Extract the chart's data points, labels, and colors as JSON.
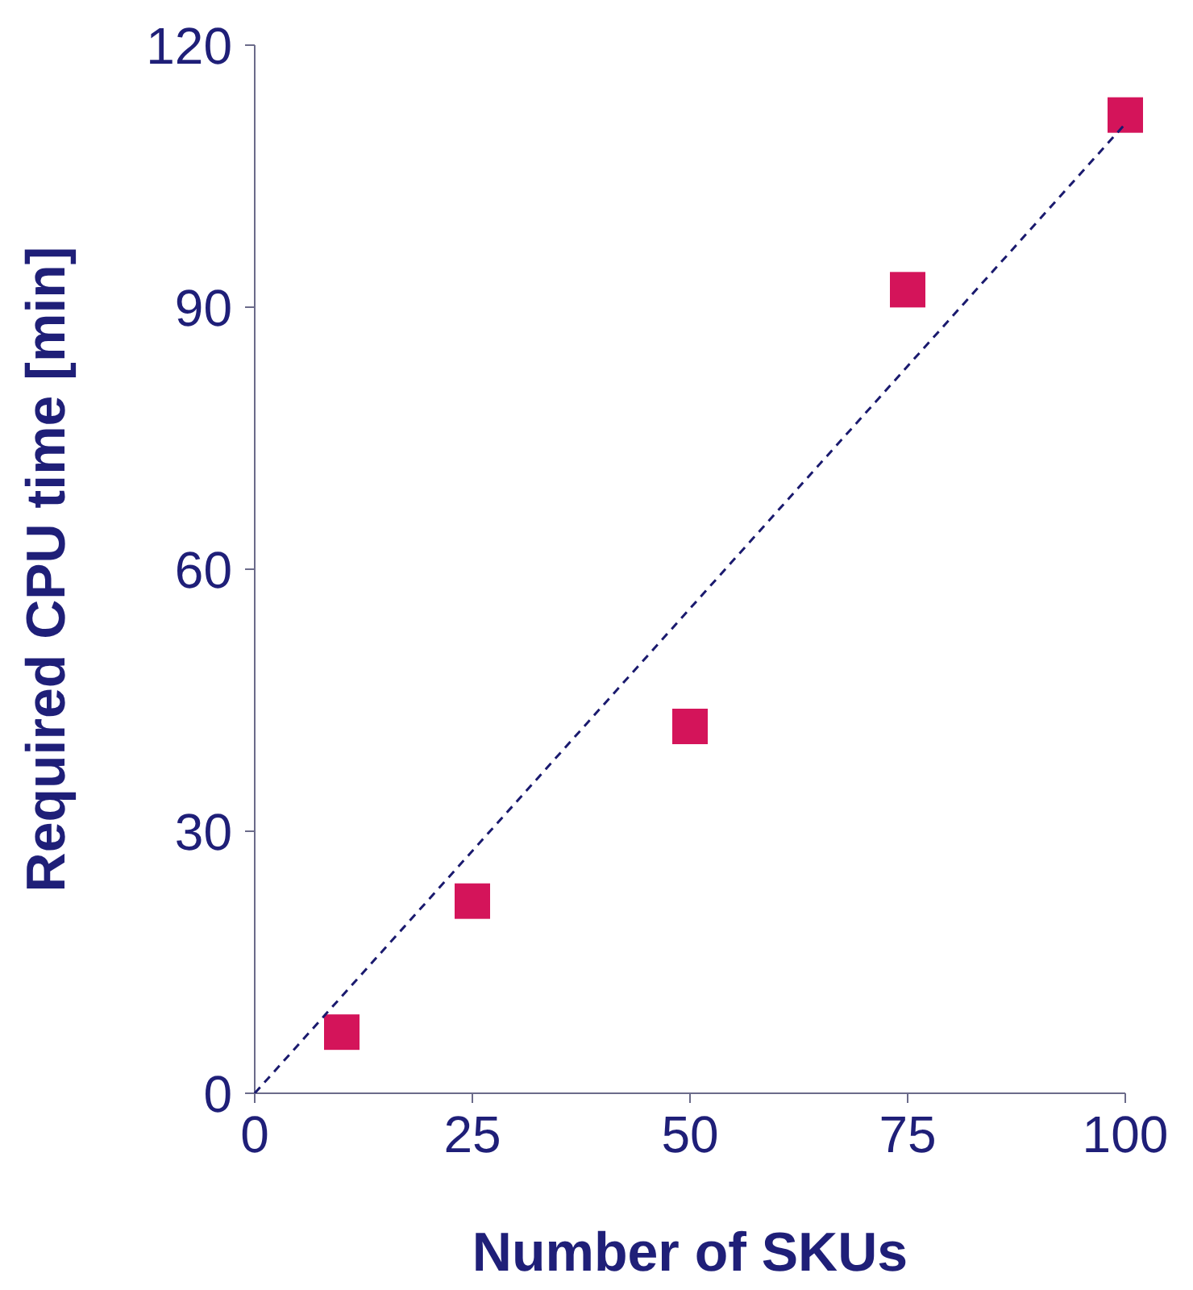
{
  "chart_data": {
    "type": "scatter",
    "xlabel": "Number of SKUs",
    "ylabel": "Required CPU time [min]",
    "xlim": [
      0,
      100
    ],
    "xticks": [
      0,
      25,
      50,
      75,
      100
    ],
    "ylim": [
      0,
      120
    ],
    "yticks": [
      0,
      30,
      60,
      90,
      120
    ],
    "grid": false,
    "legend": false,
    "series": [
      {
        "x": [
          10,
          25,
          50,
          75,
          100
        ],
        "values": [
          7,
          22,
          42,
          92,
          112
        ],
        "color": "#d4145a",
        "marker": "square"
      },
      {
        "type": "line",
        "x": [
          0,
          100
        ],
        "values": [
          0,
          111
        ],
        "color": "#1a1a6e",
        "line_style": "dashed",
        "marker": "none"
      }
    ]
  }
}
